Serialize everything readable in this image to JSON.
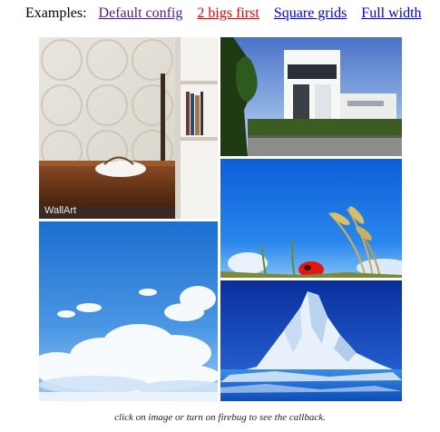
{
  "header": {
    "label": "Examples:",
    "links": [
      {
        "text": "Default config",
        "state": "visited",
        "color": "#551a8b"
      },
      {
        "text": "2 bigs first",
        "state": "active",
        "color": "#ee0000"
      },
      {
        "text": "Square grids",
        "state": "link",
        "color": "#0000ee"
      },
      {
        "text": "Full width",
        "state": "link",
        "color": "#0000ee"
      }
    ]
  },
  "gallery": {
    "images": [
      {
        "subject": "interior-shelf-wallart",
        "watermark": "WallArt"
      },
      {
        "subject": "modern-white-house"
      },
      {
        "subject": "wheat-and-red-poppy"
      },
      {
        "subject": "blue-sky-clouds"
      },
      {
        "subject": "iceberg-blue-sky"
      }
    ]
  },
  "footer": {
    "caption": "click on image or turn on firebug to see the callback."
  }
}
